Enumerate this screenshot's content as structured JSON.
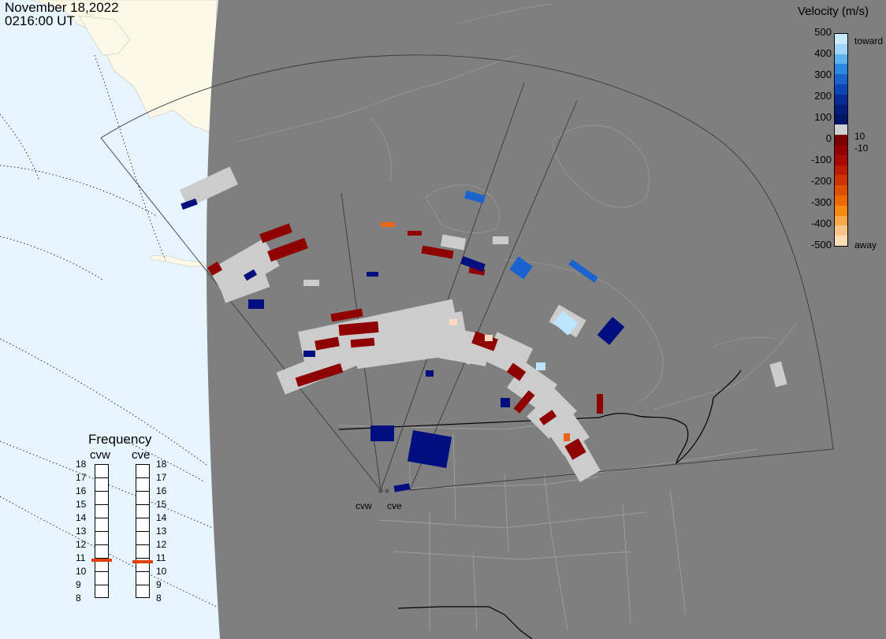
{
  "header": {
    "date": "November 18,2022",
    "time": "0216:00 UT"
  },
  "colorbar": {
    "title": "Velocity (m/s)",
    "ticks": [
      "500",
      "400",
      "300",
      "200",
      "100",
      "0",
      "-100",
      "-200",
      "-300",
      "-400",
      "-500"
    ],
    "toward_label": "toward",
    "away_label": "away",
    "inner_pos": "10",
    "inner_neg": "-10",
    "colors": [
      "#c8eaff",
      "#9fd5fb",
      "#5fb2f0",
      "#2a88e0",
      "#1a63cf",
      "#0e45b3",
      "#062c94",
      "#021e7a",
      "#001466",
      "#d0d0d0",
      "#7a0000",
      "#900000",
      "#a60a00",
      "#bb1c00",
      "#cc3500",
      "#dd5000",
      "#ec6a00",
      "#f88a10",
      "#fba94a",
      "#fdc48a",
      "#ffdcb8"
    ]
  },
  "frequency": {
    "title": "Frequency",
    "columns": [
      {
        "label": "cvw",
        "current": 10.8
      },
      {
        "label": "cve",
        "current": 10.7
      }
    ],
    "labels": [
      "18",
      "17",
      "16",
      "15",
      "14",
      "13",
      "12",
      "11",
      "10",
      "9",
      "8"
    ]
  },
  "radars": [
    {
      "name": "cvw"
    },
    {
      "name": "cve"
    }
  ],
  "map_colors": {
    "ocean": "#e6f5ff",
    "land_day": "#fdf9e8",
    "night": "#7f7f7f",
    "borders": "#9a9a9a",
    "fov_outline": "#333333",
    "ground_scatter": "#cccccc"
  }
}
